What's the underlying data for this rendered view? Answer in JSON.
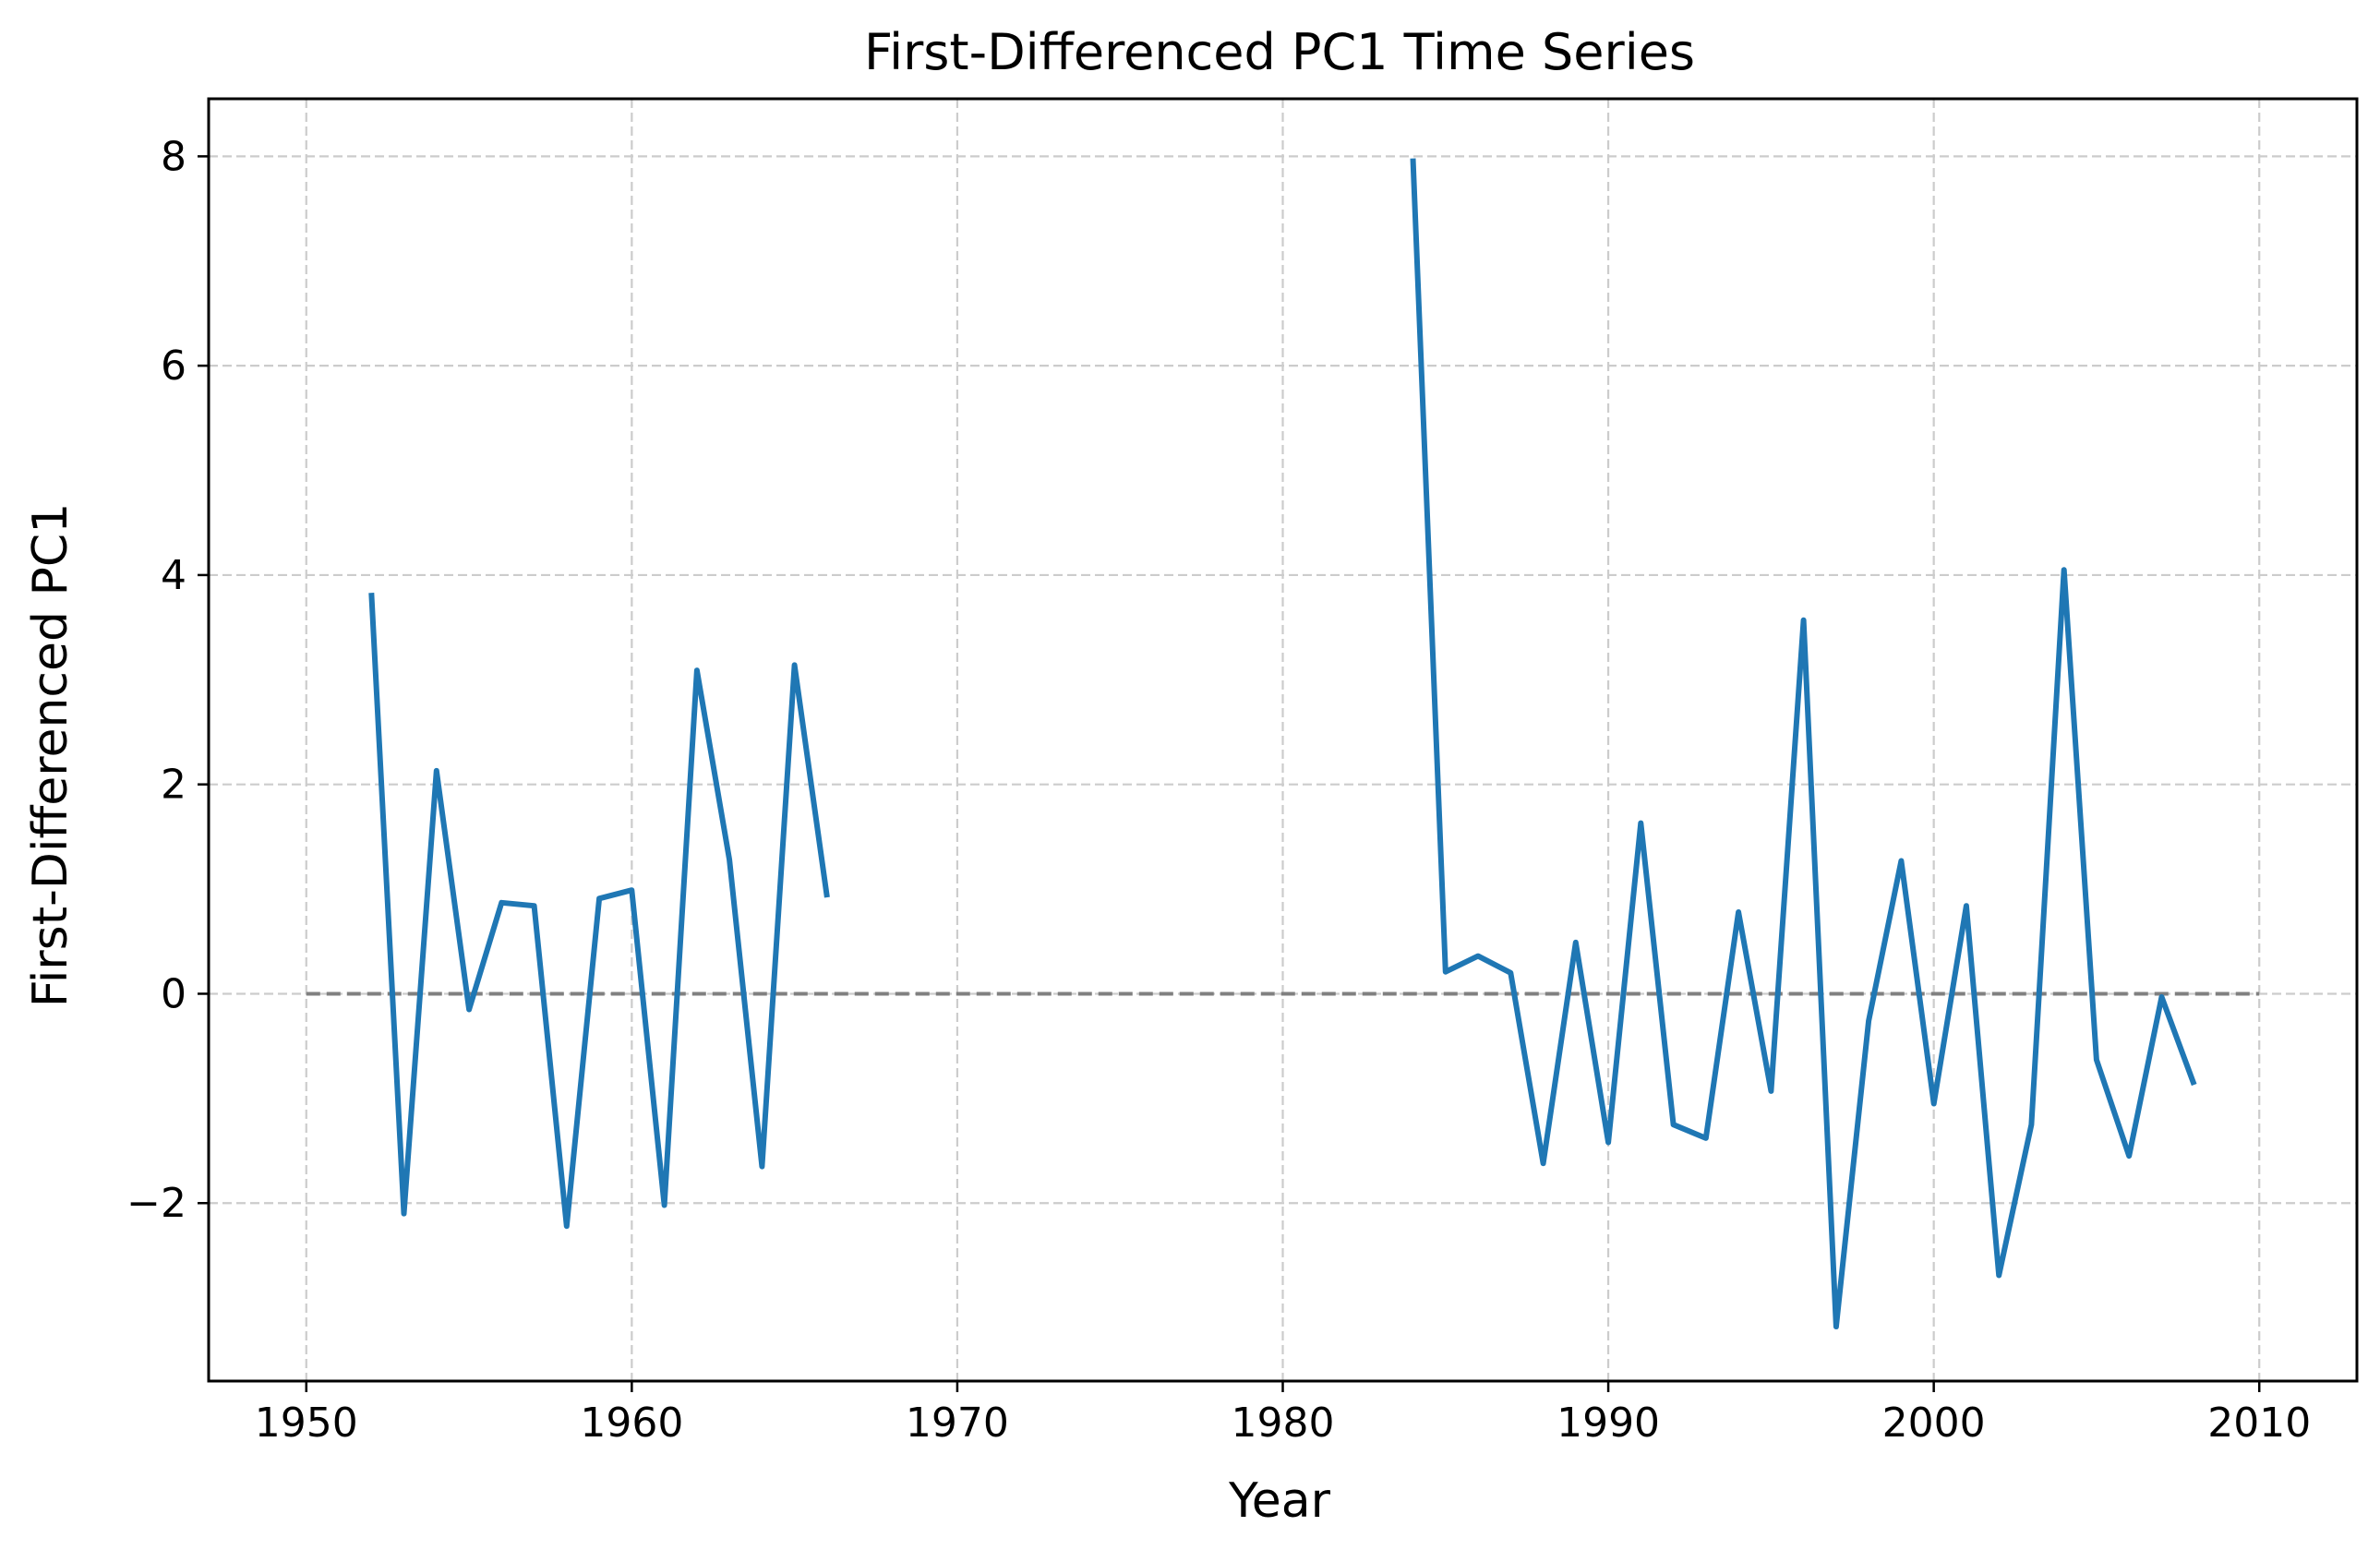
{
  "chart_data": {
    "type": "line",
    "title": "First-Differenced PC1 Time Series",
    "xlabel": "Year",
    "ylabel": "First-Differenced PC1",
    "xlim": [
      1947,
      2013
    ],
    "ylim": [
      -3.7,
      8.55
    ],
    "x_ticks": [
      1950,
      1960,
      1970,
      1980,
      1990,
      2000,
      2010
    ],
    "x_tick_labels": [
      "1950",
      "1960",
      "1970",
      "1980",
      "1990",
      "2000",
      "2010"
    ],
    "y_ticks": [
      -2,
      0,
      2,
      4,
      6,
      8
    ],
    "y_tick_labels": [
      "−2",
      "0",
      "2",
      "4",
      "6",
      "8"
    ],
    "grid": true,
    "grid_style": "dashed",
    "reference_line": {
      "y": 0,
      "x_start": 1950,
      "x_end": 2010,
      "color": "#808080",
      "style": "dashed"
    },
    "series": [
      {
        "color": "#1f77b4",
        "segments": [
          {
            "x": [
              1952,
              1953,
              1954,
              1955,
              1956,
              1957,
              1958,
              1959,
              1960,
              1961,
              1962,
              1963,
              1964,
              1965,
              1966
            ],
            "y": [
              3.83,
              -2.1,
              2.13,
              -0.15,
              0.87,
              0.84,
              -2.22,
              0.91,
              0.99,
              -2.02,
              3.09,
              1.28,
              -1.65,
              3.14,
              0.92
            ]
          },
          {
            "x": [
              1984,
              1985,
              1986,
              1987,
              1988,
              1989,
              1990,
              1991,
              1992,
              1993,
              1994,
              1995,
              1996,
              1997,
              1998,
              1999,
              2000,
              2001,
              2002,
              2003,
              2004,
              2005,
              2006,
              2007,
              2008
            ],
            "y": [
              7.98,
              0.21,
              0.36,
              0.2,
              -1.62,
              0.49,
              -1.42,
              1.63,
              -1.25,
              -1.38,
              0.78,
              -0.93,
              3.57,
              -3.18,
              -0.26,
              1.27,
              -1.05,
              0.84,
              -2.69,
              -1.25,
              4.05,
              -0.63,
              -1.55,
              -0.03,
              -0.87
            ]
          }
        ]
      }
    ]
  }
}
